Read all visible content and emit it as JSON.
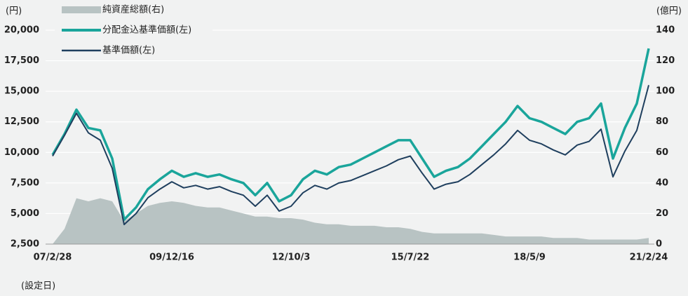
{
  "chart_data": {
    "type": "line",
    "y_unit": "(円)",
    "y2_unit": "(億円)",
    "x_note": "(設定日)",
    "categories": [
      "07/2/28",
      null,
      null,
      null,
      null,
      null,
      null,
      null,
      null,
      null,
      "09/12/16",
      null,
      null,
      null,
      null,
      null,
      null,
      null,
      null,
      null,
      "12/10/3",
      null,
      null,
      null,
      null,
      null,
      null,
      null,
      null,
      null,
      "15/7/22",
      null,
      null,
      null,
      null,
      null,
      null,
      null,
      null,
      null,
      "18/5/9",
      null,
      null,
      null,
      null,
      null,
      null,
      null,
      null,
      null,
      "21/2/24"
    ],
    "series": [
      {
        "name": "純資産総額(右)",
        "color": "#b8c3c3",
        "axis": "y2",
        "kind": "area",
        "values": [
          0,
          10,
          30,
          28,
          30,
          28,
          15,
          20,
          25,
          27,
          28,
          27,
          25,
          24,
          24,
          22,
          20,
          18,
          18,
          17,
          17,
          16,
          14,
          13,
          13,
          12,
          12,
          12,
          11,
          11,
          10,
          8,
          7,
          7,
          7,
          7,
          7,
          6,
          5,
          5,
          5,
          5,
          4,
          4,
          4,
          3,
          3,
          3,
          3,
          3,
          4
        ]
      },
      {
        "name": "分配金込基準価額(左)",
        "color": "#1aa59b",
        "values": [
          9800,
          11500,
          13500,
          12000,
          11800,
          9500,
          4500,
          5500,
          7000,
          7800,
          8500,
          8000,
          8300,
          8000,
          8200,
          7800,
          7500,
          6500,
          7500,
          6000,
          6500,
          7800,
          8500,
          8200,
          8800,
          9000,
          9500,
          10000,
          10500,
          11000,
          11000,
          9500,
          8000,
          8500,
          8800,
          9500,
          10500,
          11500,
          12500,
          13800,
          12800,
          12500,
          12000,
          11500,
          12500,
          12800,
          14000,
          9500,
          12000,
          14000,
          18500
        ]
      },
      {
        "name": "基準価額(左)",
        "color": "#1f3f5e",
        "values": [
          9700,
          11400,
          13200,
          11600,
          11000,
          8700,
          4100,
          5000,
          6300,
          7000,
          7600,
          7100,
          7300,
          7000,
          7200,
          6800,
          6500,
          5600,
          6500,
          5200,
          5600,
          6700,
          7300,
          7000,
          7500,
          7700,
          8100,
          8500,
          8900,
          9400,
          9700,
          8300,
          7000,
          7400,
          7600,
          8200,
          9000,
          9800,
          10700,
          11800,
          11000,
          10700,
          10200,
          9800,
          10600,
          10900,
          11900,
          8000,
          10100,
          11800,
          15500
        ]
      }
    ],
    "ylim": [
      2500,
      20000
    ],
    "yticks": [
      {
        "value": 2500,
        "label": "2,500"
      },
      {
        "value": 5000,
        "label": "5,000"
      },
      {
        "value": 7500,
        "label": "7,500"
      },
      {
        "value": 10000,
        "label": "10,000"
      },
      {
        "value": 12500,
        "label": "12,500"
      },
      {
        "value": 15000,
        "label": "15,000"
      },
      {
        "value": 17500,
        "label": "17,500"
      },
      {
        "value": 20000,
        "label": "20,000"
      }
    ],
    "y2lim": [
      0,
      140
    ],
    "y2ticks": [
      0,
      20,
      40,
      60,
      80,
      100,
      120,
      140
    ],
    "grid": true,
    "legend": "top-left"
  }
}
